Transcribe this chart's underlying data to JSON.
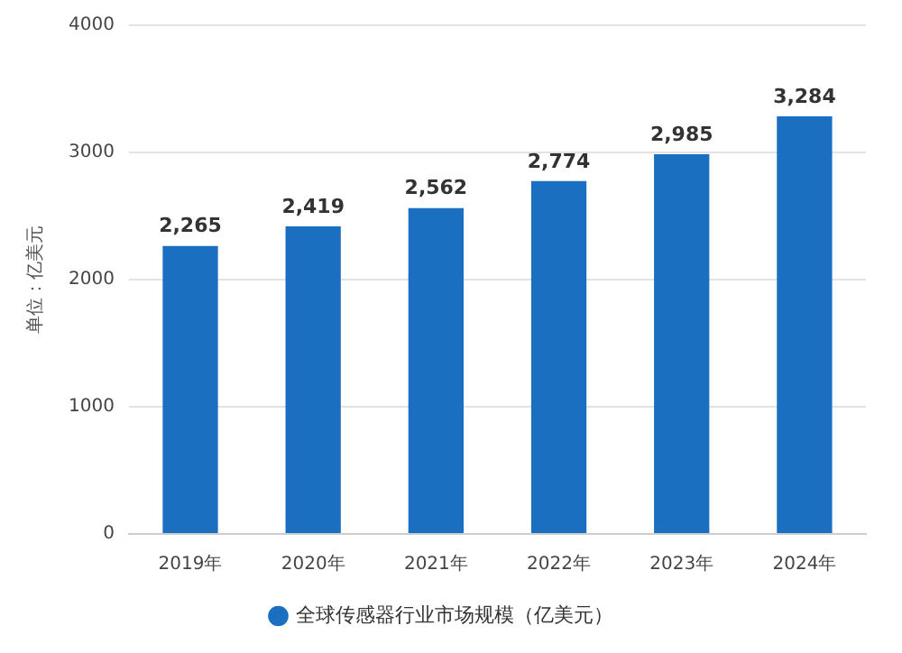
{
  "chart_data": {
    "type": "bar",
    "ylabel": "单位：亿美元",
    "categories": [
      "2019年",
      "2020年",
      "2021年",
      "2022年",
      "2023年",
      "2024年"
    ],
    "series": [
      {
        "name": "全球传感器行业市场规模（亿美元）",
        "color": "#1a6fc0",
        "values": [
          2265,
          2419,
          2562,
          2774,
          2985,
          3284
        ],
        "value_labels": [
          "2,265",
          "2,419",
          "2,562",
          "2,774",
          "2,985",
          "3,284"
        ]
      }
    ],
    "ylim": [
      0,
      4000
    ],
    "yticks": [
      0,
      1000,
      2000,
      3000,
      4000
    ],
    "grid": "y",
    "legend": "bottom"
  }
}
